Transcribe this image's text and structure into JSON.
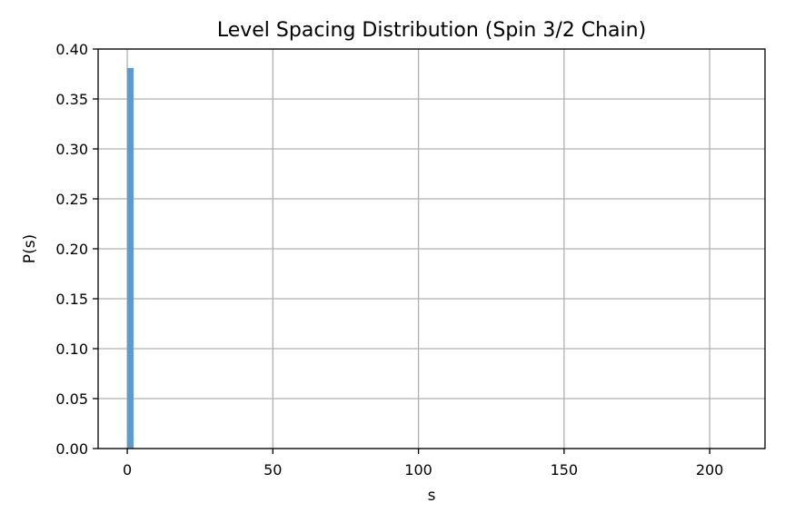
{
  "chart_data": {
    "type": "bar",
    "title": "Level Spacing Distribution (Spin 3/2 Chain)",
    "xlabel": "s",
    "ylabel": "P(s)",
    "xlim": [
      -10,
      219
    ],
    "ylim": [
      0,
      0.4
    ],
    "xticks": [
      0,
      50,
      100,
      150,
      200
    ],
    "xtick_labels": [
      "0",
      "50",
      "100",
      "150",
      "200"
    ],
    "yticks": [
      0.0,
      0.05,
      0.1,
      0.15,
      0.2,
      0.25,
      0.3,
      0.35,
      0.4
    ],
    "ytick_labels": [
      "0.00",
      "0.05",
      "0.10",
      "0.15",
      "0.20",
      "0.25",
      "0.30",
      "0.35",
      "0.40"
    ],
    "grid": true,
    "bar_color": "#5b9bd0",
    "bars": [
      {
        "x0": 0,
        "x1": 2.2,
        "value": 0.381
      }
    ]
  }
}
